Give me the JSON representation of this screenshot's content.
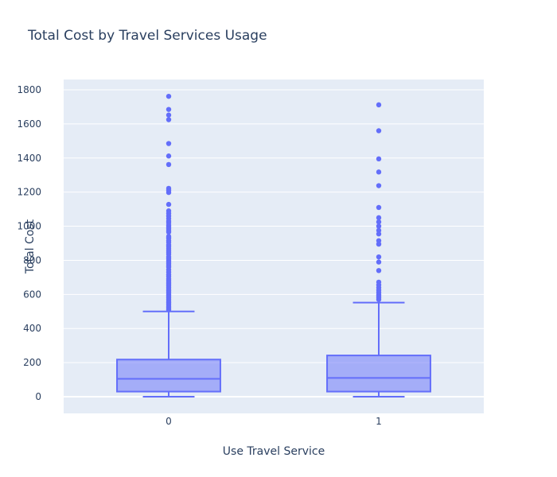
{
  "chart_data": {
    "type": "box",
    "title": "Total Cost by Travel Services Usage",
    "xlabel": "Use Travel Service",
    "ylabel": "Total Cost",
    "categories": [
      "0",
      "1"
    ],
    "ylim": [
      -100,
      1800
    ],
    "yticks": [
      0,
      200,
      400,
      600,
      800,
      1000,
      1200,
      1400,
      1600,
      1800
    ],
    "grid": true,
    "legend": "none",
    "colors": {
      "box_line": "#636efa",
      "box_fill": "rgba(99,110,250,0.5)",
      "plot_bg": "#e5ecf6",
      "grid": "#ffffff"
    },
    "boxes": [
      {
        "category": "0",
        "min": 0,
        "q1": 30,
        "median": 105,
        "q3": 218,
        "upper_fence": 500,
        "outliers": [
          1762,
          1685,
          1652,
          1625,
          1485,
          1412,
          1362,
          1222,
          1210,
          1198,
          1128,
          1090,
          1075,
          1060,
          1045,
          1030,
          1020,
          1005,
          995,
          985,
          975,
          965,
          940,
          930,
          915,
          905,
          890,
          880,
          868,
          855,
          845,
          835,
          820,
          810,
          800,
          790,
          780,
          770,
          760,
          745,
          730,
          715,
          705,
          690,
          680,
          670,
          660,
          650,
          640,
          630,
          620,
          610,
          600,
          590,
          580,
          570,
          560,
          550,
          540,
          530,
          520,
          510
        ]
      },
      {
        "category": "1",
        "min": 0,
        "q1": 30,
        "median": 110,
        "q3": 242,
        "upper_fence": 552,
        "outliers": [
          1712,
          1560,
          1395,
          1318,
          1238,
          1110,
          1050,
          1025,
          1000,
          975,
          955,
          915,
          895,
          820,
          790,
          740,
          672,
          655,
          640,
          625,
          612,
          600,
          590,
          580,
          570
        ]
      }
    ]
  }
}
